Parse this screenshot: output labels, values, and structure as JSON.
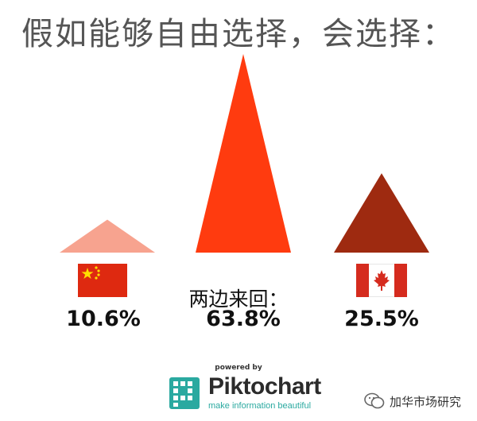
{
  "chart_data": {
    "type": "bar",
    "title": "假如能够自由选择，会选择：",
    "categories": [
      "中国",
      "两边来回：",
      "加拿大"
    ],
    "values": [
      10.6,
      63.8,
      25.5
    ],
    "value_labels": [
      "10.6%",
      "63.8%",
      "25.5%"
    ],
    "colors": [
      "#f7a38f",
      "#ff3b0f",
      "#9e2a10"
    ],
    "ylim": [
      0,
      63.8
    ]
  },
  "middle_label": "两边来回：",
  "branding": {
    "powered_by": "powered by",
    "name_part1": "Pikto",
    "name_part2": "chart",
    "tagline": "make information beautiful",
    "watermark": "加华市场研究"
  },
  "icons": {
    "left_flag": "china-flag-icon",
    "right_flag": "canada-flag-icon",
    "logo": "piktochart-logo-icon",
    "wechat": "wechat-icon"
  }
}
